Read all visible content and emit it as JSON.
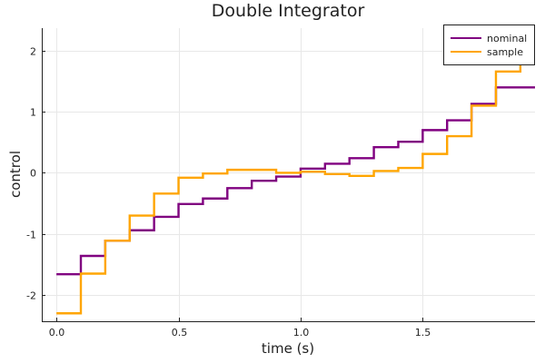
{
  "chart_data": {
    "type": "line",
    "step": "post",
    "title": "Double Integrator",
    "xlabel": "time (s)",
    "ylabel": "control",
    "xlim": [
      -0.06,
      1.96
    ],
    "ylim": [
      -2.43,
      2.37
    ],
    "xticks": [
      0.0,
      0.5,
      1.0,
      1.5
    ],
    "xtick_labels": [
      "0.0",
      "0.5",
      "1.0",
      "1.5"
    ],
    "yticks": [
      -2,
      -1,
      0,
      1,
      2
    ],
    "ytick_labels": [
      "-2",
      "-1",
      "0",
      "1",
      "2"
    ],
    "grid": true,
    "legend_position": "top-right",
    "x": [
      0.0,
      0.1,
      0.2,
      0.3,
      0.4,
      0.5,
      0.6,
      0.7,
      0.8,
      0.9,
      1.0,
      1.1,
      1.2,
      1.3,
      1.4,
      1.5,
      1.6,
      1.7,
      1.8,
      1.9
    ],
    "series": [
      {
        "name": "nominal",
        "color": "#800080",
        "values": [
          -1.66,
          -1.36,
          -1.11,
          -0.94,
          -0.72,
          -0.51,
          -0.42,
          -0.25,
          -0.13,
          -0.06,
          0.07,
          0.15,
          0.24,
          0.42,
          0.51,
          0.7,
          0.86,
          1.13,
          1.4,
          1.4
        ]
      },
      {
        "name": "sample",
        "color": "#FFA500",
        "values": [
          -2.3,
          -1.65,
          -1.11,
          -0.7,
          -0.34,
          -0.08,
          -0.01,
          0.05,
          0.05,
          0.0,
          0.02,
          -0.02,
          -0.05,
          0.03,
          0.08,
          0.31,
          0.6,
          1.1,
          1.66,
          2.02
        ]
      }
    ]
  }
}
